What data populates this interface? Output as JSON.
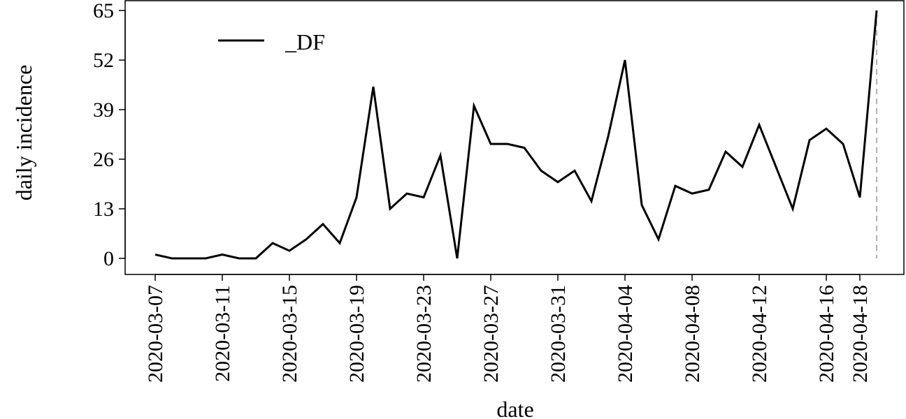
{
  "chart_data": {
    "type": "line",
    "xlabel": "date",
    "ylabel": "daily incidence",
    "ylim": [
      0,
      65
    ],
    "y_ticks": [
      0,
      13,
      26,
      39,
      52,
      65
    ],
    "x_ticks": [
      "2020-03-07",
      "2020-03-11",
      "2020-03-15",
      "2020-03-19",
      "2020-03-23",
      "2020-03-27",
      "2020-03-31",
      "2020-04-04",
      "2020-04-08",
      "2020-04-12",
      "2020-04-16",
      "2020-04-18"
    ],
    "legend_position": "top-left",
    "reference_line": {
      "x": "2020-04-19",
      "style": "dashed",
      "color": "#b0b0b0"
    },
    "series": [
      {
        "name": "_DF",
        "color": "#000000",
        "x": [
          "2020-03-07",
          "2020-03-08",
          "2020-03-09",
          "2020-03-10",
          "2020-03-11",
          "2020-03-12",
          "2020-03-13",
          "2020-03-14",
          "2020-03-15",
          "2020-03-16",
          "2020-03-17",
          "2020-03-18",
          "2020-03-19",
          "2020-03-20",
          "2020-03-21",
          "2020-03-22",
          "2020-03-23",
          "2020-03-24",
          "2020-03-25",
          "2020-03-26",
          "2020-03-27",
          "2020-03-28",
          "2020-03-29",
          "2020-03-30",
          "2020-03-31",
          "2020-04-01",
          "2020-04-02",
          "2020-04-03",
          "2020-04-04",
          "2020-04-05",
          "2020-04-06",
          "2020-04-07",
          "2020-04-08",
          "2020-04-09",
          "2020-04-10",
          "2020-04-11",
          "2020-04-12",
          "2020-04-13",
          "2020-04-14",
          "2020-04-15",
          "2020-04-16",
          "2020-04-17",
          "2020-04-18",
          "2020-04-19"
        ],
        "values": [
          1,
          0,
          0,
          0,
          1,
          0,
          0,
          4,
          2,
          5,
          9,
          4,
          16,
          45,
          13,
          17,
          16,
          27,
          0,
          40,
          30,
          30,
          29,
          23,
          20,
          23,
          15,
          32,
          52,
          14,
          5,
          19,
          17,
          18,
          28,
          24,
          35,
          24,
          13,
          31,
          34,
          30,
          16,
          65
        ]
      }
    ]
  }
}
